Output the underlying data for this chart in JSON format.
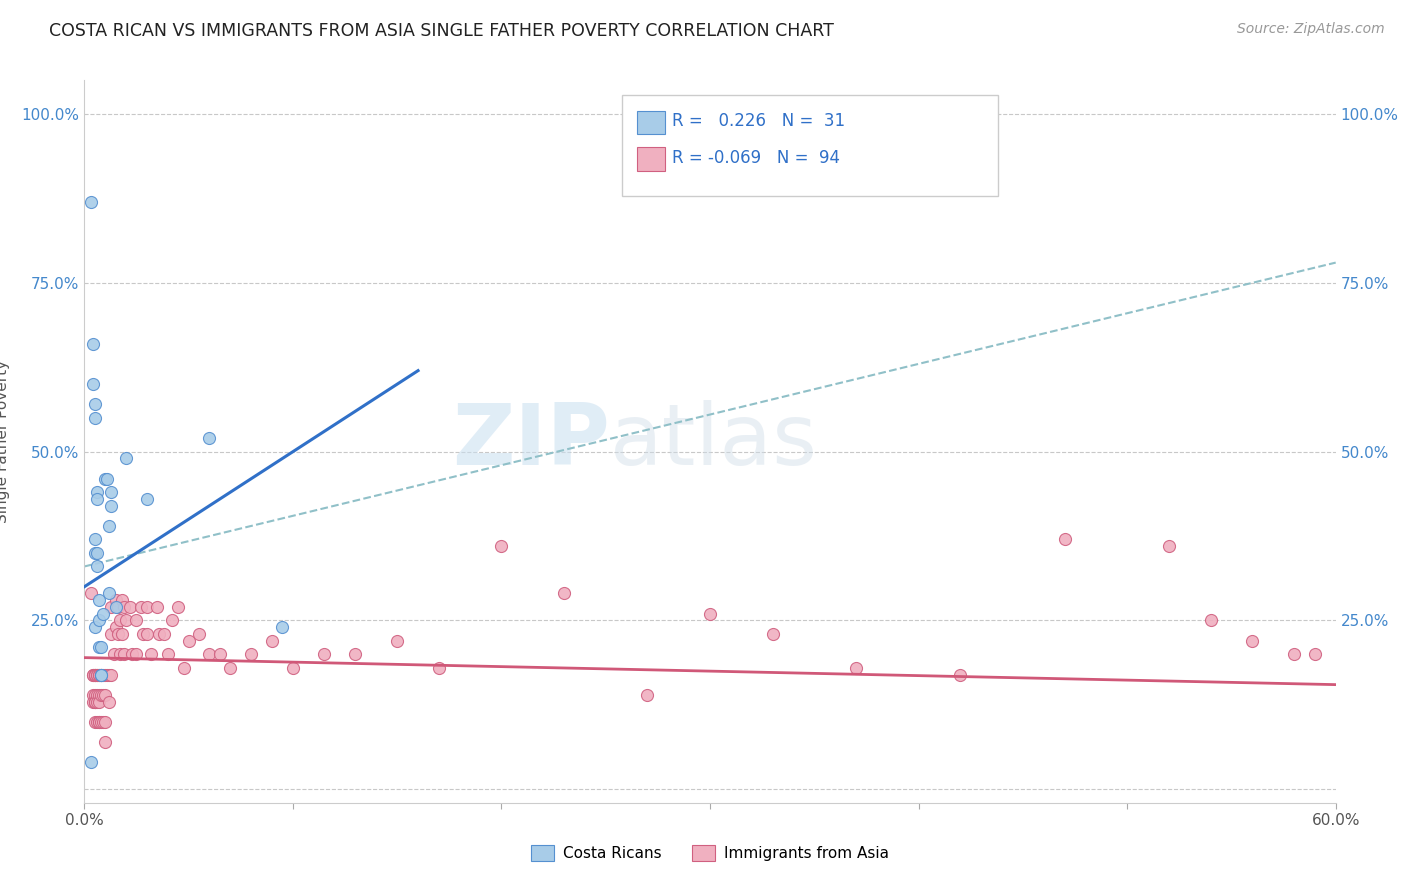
{
  "title": "COSTA RICAN VS IMMIGRANTS FROM ASIA SINGLE FATHER POVERTY CORRELATION CHART",
  "source": "Source: ZipAtlas.com",
  "ylabel": "Single Father Poverty",
  "xlim": [
    0.0,
    0.6
  ],
  "ylim": [
    -0.02,
    1.05
  ],
  "xticks": [
    0.0,
    0.1,
    0.2,
    0.3,
    0.4,
    0.5,
    0.6
  ],
  "xticklabels": [
    "0.0%",
    "",
    "",
    "",
    "",
    "",
    "60.0%"
  ],
  "yticks": [
    0.0,
    0.25,
    0.5,
    0.75,
    1.0
  ],
  "yticklabels": [
    "",
    "25.0%",
    "50.0%",
    "75.0%",
    "100.0%"
  ],
  "r_costa": 0.226,
  "n_costa": 31,
  "r_asia": -0.069,
  "n_asia": 94,
  "legend_labels": [
    "Costa Ricans",
    "Immigrants from Asia"
  ],
  "color_costa_fill": "#a8cce8",
  "color_costa_edge": "#5590d0",
  "color_asia_fill": "#f0b0c0",
  "color_asia_edge": "#d06080",
  "color_costa_line": "#3070c8",
  "color_asia_line": "#d05878",
  "color_dashed": "#90c0c8",
  "background": "#ffffff",
  "watermark_zip": "ZIP",
  "watermark_atlas": "atlas",
  "costa_x": [
    0.003,
    0.003,
    0.004,
    0.004,
    0.005,
    0.005,
    0.005,
    0.005,
    0.005,
    0.006,
    0.006,
    0.006,
    0.006,
    0.007,
    0.007,
    0.007,
    0.008,
    0.008,
    0.008,
    0.009,
    0.01,
    0.011,
    0.012,
    0.012,
    0.013,
    0.013,
    0.015,
    0.02,
    0.03,
    0.06,
    0.095
  ],
  "costa_y": [
    0.87,
    0.04,
    0.66,
    0.6,
    0.57,
    0.55,
    0.37,
    0.24,
    0.35,
    0.35,
    0.44,
    0.43,
    0.33,
    0.28,
    0.25,
    0.21,
    0.21,
    0.17,
    0.17,
    0.26,
    0.46,
    0.46,
    0.39,
    0.29,
    0.42,
    0.44,
    0.27,
    0.49,
    0.43,
    0.52,
    0.24
  ],
  "asia_x": [
    0.003,
    0.004,
    0.004,
    0.004,
    0.004,
    0.005,
    0.005,
    0.005,
    0.005,
    0.005,
    0.005,
    0.005,
    0.005,
    0.006,
    0.006,
    0.006,
    0.006,
    0.006,
    0.007,
    0.007,
    0.007,
    0.007,
    0.007,
    0.007,
    0.008,
    0.008,
    0.008,
    0.008,
    0.009,
    0.009,
    0.009,
    0.01,
    0.01,
    0.01,
    0.01,
    0.011,
    0.012,
    0.012,
    0.013,
    0.013,
    0.013,
    0.014,
    0.015,
    0.015,
    0.016,
    0.016,
    0.017,
    0.017,
    0.018,
    0.018,
    0.019,
    0.019,
    0.02,
    0.022,
    0.023,
    0.025,
    0.025,
    0.027,
    0.028,
    0.03,
    0.03,
    0.032,
    0.035,
    0.036,
    0.038,
    0.04,
    0.042,
    0.045,
    0.048,
    0.05,
    0.055,
    0.06,
    0.065,
    0.07,
    0.08,
    0.09,
    0.1,
    0.115,
    0.13,
    0.15,
    0.17,
    0.2,
    0.23,
    0.27,
    0.3,
    0.33,
    0.37,
    0.42,
    0.47,
    0.52,
    0.54,
    0.56,
    0.58,
    0.59
  ],
  "asia_y": [
    0.29,
    0.17,
    0.14,
    0.17,
    0.13,
    0.17,
    0.14,
    0.13,
    0.17,
    0.13,
    0.17,
    0.13,
    0.1,
    0.17,
    0.14,
    0.1,
    0.17,
    0.13,
    0.17,
    0.14,
    0.1,
    0.17,
    0.13,
    0.1,
    0.17,
    0.14,
    0.1,
    0.17,
    0.17,
    0.14,
    0.1,
    0.17,
    0.14,
    0.1,
    0.07,
    0.17,
    0.17,
    0.13,
    0.27,
    0.23,
    0.17,
    0.2,
    0.28,
    0.24,
    0.27,
    0.23,
    0.25,
    0.2,
    0.28,
    0.23,
    0.27,
    0.2,
    0.25,
    0.27,
    0.2,
    0.25,
    0.2,
    0.27,
    0.23,
    0.27,
    0.23,
    0.2,
    0.27,
    0.23,
    0.23,
    0.2,
    0.25,
    0.27,
    0.18,
    0.22,
    0.23,
    0.2,
    0.2,
    0.18,
    0.2,
    0.22,
    0.18,
    0.2,
    0.2,
    0.22,
    0.18,
    0.36,
    0.29,
    0.14,
    0.26,
    0.23,
    0.18,
    0.17,
    0.37,
    0.36,
    0.25,
    0.22,
    0.2,
    0.2
  ],
  "costa_trend_x": [
    0.0,
    0.16
  ],
  "costa_trend_y": [
    0.3,
    0.62
  ],
  "asia_trend_x": [
    0.0,
    0.6
  ],
  "asia_trend_y": [
    0.195,
    0.155
  ]
}
